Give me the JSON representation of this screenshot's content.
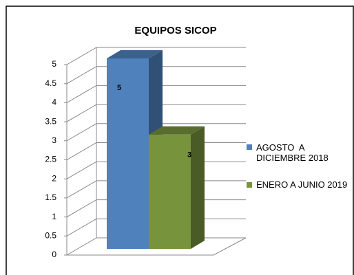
{
  "chart_data": {
    "type": "bar3d",
    "title": "EQUIPOS SICOP",
    "categories": [
      null
    ],
    "series": [
      {
        "name": "AGOSTO  A DICIEMBRE 2018",
        "color": "#4f81bd",
        "values": [
          5
        ]
      },
      {
        "name": "ENERO A JUNIO 2019",
        "color": "#77933c",
        "values": [
          3
        ]
      }
    ],
    "ylim": [
      0,
      5
    ],
    "yticks": [
      0,
      0.5,
      1,
      1.5,
      2,
      2.5,
      3,
      3.5,
      4,
      4.5,
      5
    ],
    "grid": true,
    "legend": "right"
  }
}
